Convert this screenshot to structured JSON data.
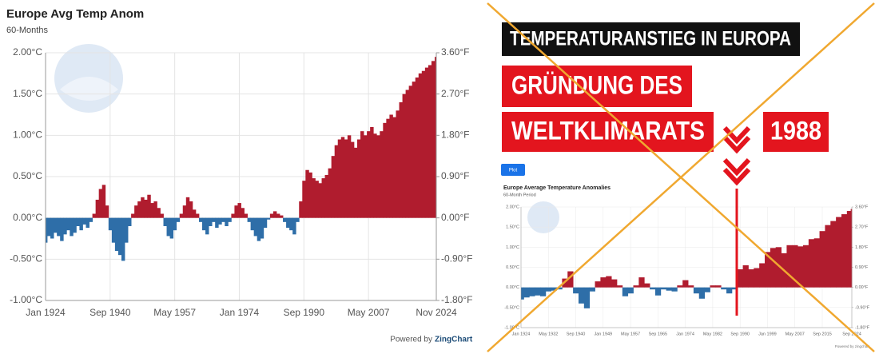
{
  "chart_data": [
    {
      "type": "area",
      "title": "Europe Avg Temp Anom",
      "subtitle": "60-Months",
      "credit_prefix": "Powered by",
      "credit_brand": "ZingChart",
      "colors": {
        "positive": "#b01c2e",
        "negative": "#2e6ea8"
      },
      "x": [
        "Jan 1924",
        "Nov 1924",
        "Sep 1925",
        "Jul 1926",
        "May 1927",
        "Mar 1928",
        "Jan 1929",
        "Nov 1929",
        "Sep 1930",
        "Jul 1931",
        "May 1932",
        "Mar 1933",
        "Jan 1934",
        "Nov 1934",
        "Sep 1935",
        "Jul 1936",
        "May 1937",
        "Mar 1938",
        "Jan 1939",
        "Nov 1939",
        "Sep 1940",
        "Jul 1941",
        "May 1942",
        "Mar 1943",
        "Jan 1944",
        "Nov 1944",
        "Sep 1945",
        "Jul 1946",
        "May 1947",
        "Mar 1948",
        "Jan 1949",
        "Nov 1949",
        "Sep 1950",
        "Jul 1951",
        "May 1952",
        "Mar 1953",
        "Jan 1954",
        "Nov 1954",
        "Sep 1955",
        "Jul 1956",
        "May 1957",
        "Mar 1958",
        "Jan 1959",
        "Nov 1959",
        "Sep 1960",
        "Jul 1961",
        "May 1962",
        "Mar 1963",
        "Jan 1964",
        "Nov 1964",
        "Sep 1965",
        "Jul 1966",
        "May 1967",
        "Mar 1968",
        "Jan 1969",
        "Nov 1969",
        "Sep 1970",
        "Jul 1971",
        "May 1972",
        "Mar 1973",
        "Jan 1974",
        "Nov 1974",
        "Sep 1975",
        "Jul 1976",
        "May 1977",
        "Mar 1978",
        "Jan 1979",
        "Nov 1979",
        "Sep 1980",
        "Jul 1981",
        "May 1982",
        "Mar 1983",
        "Jan 1984",
        "Nov 1984",
        "Sep 1985",
        "Jul 1986",
        "May 1987",
        "Mar 1988",
        "Jan 1989",
        "Nov 1989",
        "Sep 1990",
        "Jul 1991",
        "May 1992",
        "Mar 1993",
        "Jan 1994",
        "Nov 1994",
        "Sep 1995",
        "Jul 1996",
        "May 1997",
        "Mar 1998",
        "Jan 1999",
        "Nov 1999",
        "Sep 2000",
        "Jul 2001",
        "May 2002",
        "Mar 2003",
        "Jan 2004",
        "Nov 2004",
        "Sep 2005",
        "Jul 2006",
        "May 2007",
        "Mar 2008",
        "Jan 2009",
        "Nov 2009",
        "Sep 2010",
        "Jul 2011",
        "May 2012",
        "Mar 2013",
        "Jan 2014",
        "Nov 2014",
        "Sep 2015",
        "Jul 2016",
        "May 2017",
        "Mar 2018",
        "Jan 2019",
        "Nov 2019",
        "Sep 2020",
        "Jul 2021",
        "May 2022",
        "Mar 2023",
        "Jan 2024",
        "Nov 2024"
      ],
      "values": [
        -0.3,
        -0.22,
        -0.25,
        -0.18,
        -0.22,
        -0.28,
        -0.2,
        -0.15,
        -0.22,
        -0.18,
        -0.1,
        -0.15,
        -0.08,
        -0.12,
        -0.05,
        0.05,
        0.22,
        0.35,
        0.4,
        0.15,
        -0.15,
        -0.3,
        -0.4,
        -0.45,
        -0.52,
        -0.3,
        -0.1,
        0.05,
        0.15,
        0.2,
        0.25,
        0.22,
        0.28,
        0.18,
        0.2,
        0.12,
        0.05,
        -0.1,
        -0.22,
        -0.25,
        -0.15,
        -0.05,
        0.05,
        0.15,
        0.25,
        0.2,
        0.1,
        0.05,
        -0.05,
        -0.15,
        -0.2,
        -0.1,
        -0.05,
        -0.12,
        -0.08,
        -0.05,
        -0.1,
        -0.05,
        0.05,
        0.15,
        0.18,
        0.12,
        0.05,
        -0.05,
        -0.15,
        -0.22,
        -0.28,
        -0.25,
        -0.12,
        -0.02,
        0.05,
        0.08,
        0.05,
        0.03,
        -0.05,
        -0.12,
        -0.15,
        -0.2,
        -0.05,
        0.2,
        0.45,
        0.58,
        0.55,
        0.48,
        0.45,
        0.42,
        0.48,
        0.52,
        0.6,
        0.75,
        0.88,
        0.95,
        0.98,
        0.95,
        1.0,
        0.92,
        0.85,
        0.95,
        1.05,
        1.0,
        1.05,
        1.1,
        1.02,
        1.0,
        1.05,
        1.15,
        1.2,
        1.25,
        1.22,
        1.3,
        1.4,
        1.5,
        1.55,
        1.6,
        1.65,
        1.7,
        1.75,
        1.78,
        1.82,
        1.85,
        1.9,
        1.95
      ],
      "xticks": [
        "Jan 1924",
        "Sep 1940",
        "May 1957",
        "Jan 1974",
        "Sep 1990",
        "May 2007",
        "Nov 2024"
      ],
      "ylim": [
        -1,
        2
      ],
      "yticks": [
        {
          "value": -1,
          "label": "-1.00°C"
        },
        {
          "value": -0.5,
          "label": "-0.50°C"
        },
        {
          "value": 0,
          "label": "0.00°C"
        },
        {
          "value": 0.5,
          "label": "0.50°C"
        },
        {
          "value": 1,
          "label": "1.00°C"
        },
        {
          "value": 1.5,
          "label": "1.50°C"
        },
        {
          "value": 2,
          "label": "2.00°C"
        }
      ],
      "y2lim": [
        -1.8,
        3.6
      ],
      "y2ticks": [
        {
          "value": -1.8,
          "label": "-1.80°F"
        },
        {
          "value": -0.9,
          "label": "-0.90°F"
        },
        {
          "value": 0,
          "label": "0.00°F"
        },
        {
          "value": 0.9,
          "label": "0.90°F"
        },
        {
          "value": 1.8,
          "label": "1.80°F"
        },
        {
          "value": 2.7,
          "label": "2.70°F"
        },
        {
          "value": 3.6,
          "label": "3.60°F"
        }
      ],
      "grid": true
    },
    {
      "type": "area",
      "title": "Europe Average Temperature Anomalies",
      "subtitle": "60-Month Period",
      "button": "Plot",
      "credit": "Powered by zingchart",
      "colors": {
        "positive": "#b01c2e",
        "negative": "#2e6ea8"
      },
      "x": [
        "Jan 1924",
        "Sep 1925",
        "May 1927",
        "Jan 1929",
        "Sep 1930",
        "May 1932",
        "Jan 1934",
        "Sep 1935",
        "May 1937",
        "Jan 1939",
        "Sep 1940",
        "May 1942",
        "Jan 1944",
        "Sep 1945",
        "May 1947",
        "Jan 1949",
        "Sep 1950",
        "May 1952",
        "Jan 1954",
        "Sep 1955",
        "May 1957",
        "Jan 1959",
        "Sep 1960",
        "May 1962",
        "Jan 1964",
        "Sep 1965",
        "May 1967",
        "Jan 1969",
        "Sep 1970",
        "May 1972",
        "Jan 1974",
        "Sep 1975",
        "May 1977",
        "Jan 1979",
        "Sep 1980",
        "May 1982",
        "Jan 1984",
        "Sep 1985",
        "May 1987",
        "Jan 1989",
        "Sep 1990",
        "May 1992",
        "Jan 1994",
        "Sep 1995",
        "May 1997",
        "Jan 1999",
        "Sep 2000",
        "May 2002",
        "Jan 2004",
        "Sep 2005",
        "May 2007",
        "Jan 2009",
        "Sep 2010",
        "May 2012",
        "Jan 2014",
        "Sep 2015",
        "May 2017",
        "Jan 2019",
        "Sep 2020",
        "May 2022",
        "Jan 2024",
        "Sep 2024"
      ],
      "values": [
        -0.3,
        -0.25,
        -0.22,
        -0.2,
        -0.22,
        -0.1,
        -0.08,
        -0.05,
        0.22,
        0.4,
        -0.15,
        -0.4,
        -0.52,
        -0.1,
        0.15,
        0.25,
        0.28,
        0.2,
        0.05,
        -0.22,
        -0.15,
        0.05,
        0.25,
        0.1,
        -0.05,
        -0.2,
        -0.05,
        -0.08,
        -0.1,
        0.05,
        0.18,
        0.05,
        -0.15,
        -0.28,
        -0.12,
        0.05,
        0.05,
        -0.05,
        -0.15,
        -0.05,
        0.45,
        0.55,
        0.45,
        0.48,
        0.6,
        0.88,
        0.98,
        1.0,
        0.85,
        1.05,
        1.05,
        1.02,
        1.05,
        1.2,
        1.22,
        1.4,
        1.55,
        1.65,
        1.75,
        1.82,
        1.9,
        1.95
      ],
      "xticks": [
        "Jan 1924",
        "May 1932",
        "Sep 1940",
        "Jan 1949",
        "May 1957",
        "Sep 1965",
        "Jan 1974",
        "May 1982",
        "Sep 1990",
        "Jan 1999",
        "May 2007",
        "Sep 2015",
        "Sep 2024"
      ],
      "ylim": [
        -1,
        2
      ],
      "yticks": [
        {
          "value": -1,
          "label": "-1.00°C"
        },
        {
          "value": -0.5,
          "label": "-0.50°C"
        },
        {
          "value": 0,
          "label": "0.00°C"
        },
        {
          "value": 0.5,
          "label": "0.50°C"
        },
        {
          "value": 1,
          "label": "1.00°C"
        },
        {
          "value": 1.5,
          "label": "1.50°C"
        },
        {
          "value": 2,
          "label": "2.00°C"
        }
      ],
      "y2lim": [
        -1.8,
        3.6
      ],
      "y2ticks": [
        {
          "value": -1.8,
          "label": "-1.80°F"
        },
        {
          "value": -0.9,
          "label": "-0.90°F"
        },
        {
          "value": 0,
          "label": "0.00°F"
        },
        {
          "value": 0.9,
          "label": "0.90°F"
        },
        {
          "value": 1.8,
          "label": "1.80°F"
        },
        {
          "value": 2.7,
          "label": "2.70°F"
        },
        {
          "value": 3.6,
          "label": "3.60°F"
        }
      ],
      "grid": true
    }
  ],
  "overlay": {
    "headline": "TEMPERATURANSTIEG IN EUROPA",
    "lines": [
      "GRÜNDUNG DES",
      "WELTKLIMARATS"
    ],
    "year": "1988"
  }
}
